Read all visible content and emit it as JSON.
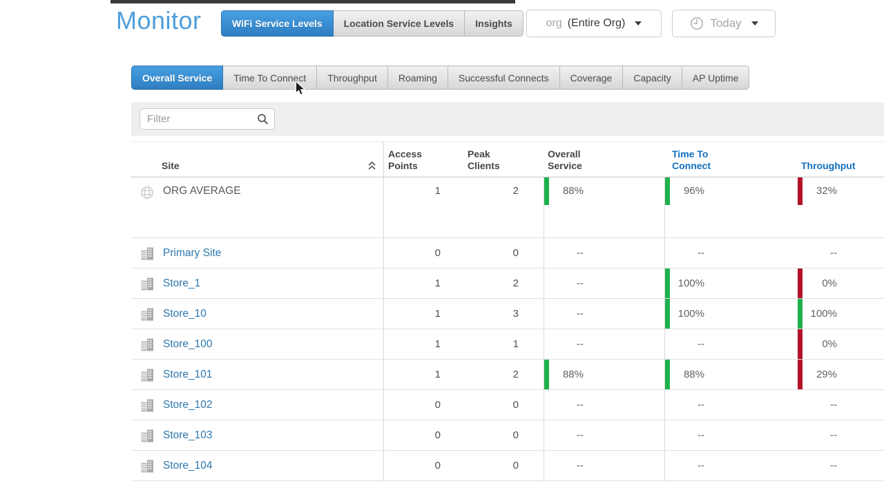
{
  "page": {
    "title": "Monitor"
  },
  "colors": {
    "accent": "#4e9edb",
    "good": "#1eb14b",
    "bad": "#b31228",
    "link": "#2d77ac",
    "link-strong": "#1470bd"
  },
  "view_tabs": [
    {
      "label": "WiFi Service Levels",
      "active": true
    },
    {
      "label": "Location Service Levels",
      "active": false
    },
    {
      "label": "Insights",
      "active": false
    }
  ],
  "org_selector": {
    "prefix": "org",
    "value": "(Entire Org)"
  },
  "time_selector": {
    "label": "Today"
  },
  "metric_tabs": [
    {
      "label": "Overall Service",
      "active": true
    },
    {
      "label": "Time To Connect",
      "active": false
    },
    {
      "label": "Throughput",
      "active": false
    },
    {
      "label": "Roaming",
      "active": false
    },
    {
      "label": "Successful Connects",
      "active": false
    },
    {
      "label": "Coverage",
      "active": false
    },
    {
      "label": "Capacity",
      "active": false
    },
    {
      "label": "AP Uptime",
      "active": false
    }
  ],
  "filter": {
    "placeholder": "Filter"
  },
  "table": {
    "columns": [
      {
        "lines": [
          "Site"
        ]
      },
      {
        "lines": [
          "Access",
          "Points"
        ]
      },
      {
        "lines": [
          "Peak",
          "Clients"
        ]
      },
      {
        "lines": [
          "Overall",
          "Service"
        ]
      },
      {
        "lines": [
          "Time To",
          "Connect"
        ]
      },
      {
        "lines": [
          "Throughput"
        ]
      }
    ],
    "rows": [
      {
        "icon": "globe",
        "name": "ORG AVERAGE",
        "link": false,
        "tall": true,
        "access_points": "1",
        "peak_clients": "2",
        "metrics": [
          {
            "value": "88%",
            "status": "good"
          },
          {
            "value": "96%",
            "status": "good"
          },
          {
            "value": "32%",
            "status": "bad"
          }
        ]
      },
      {
        "icon": "building",
        "name": "Primary Site",
        "link": true,
        "access_points": "0",
        "peak_clients": "0",
        "metrics": [
          {
            "value": "--",
            "status": "none"
          },
          {
            "value": "--",
            "status": "none"
          },
          {
            "value": "--",
            "status": "none"
          }
        ]
      },
      {
        "icon": "building",
        "name": "Store_1",
        "link": true,
        "access_points": "1",
        "peak_clients": "2",
        "metrics": [
          {
            "value": "--",
            "status": "none"
          },
          {
            "value": "100%",
            "status": "good"
          },
          {
            "value": "0%",
            "status": "bad"
          }
        ]
      },
      {
        "icon": "building",
        "name": "Store_10",
        "link": true,
        "access_points": "1",
        "peak_clients": "3",
        "metrics": [
          {
            "value": "--",
            "status": "none"
          },
          {
            "value": "100%",
            "status": "good"
          },
          {
            "value": "100%",
            "status": "good"
          }
        ]
      },
      {
        "icon": "building",
        "name": "Store_100",
        "link": true,
        "access_points": "1",
        "peak_clients": "1",
        "metrics": [
          {
            "value": "--",
            "status": "none"
          },
          {
            "value": "--",
            "status": "none"
          },
          {
            "value": "0%",
            "status": "bad"
          }
        ]
      },
      {
        "icon": "building",
        "name": "Store_101",
        "link": true,
        "access_points": "1",
        "peak_clients": "2",
        "metrics": [
          {
            "value": "88%",
            "status": "good"
          },
          {
            "value": "88%",
            "status": "good"
          },
          {
            "value": "29%",
            "status": "bad"
          }
        ]
      },
      {
        "icon": "building",
        "name": "Store_102",
        "link": true,
        "access_points": "0",
        "peak_clients": "0",
        "metrics": [
          {
            "value": "--",
            "status": "none"
          },
          {
            "value": "--",
            "status": "none"
          },
          {
            "value": "--",
            "status": "none"
          }
        ]
      },
      {
        "icon": "building",
        "name": "Store_103",
        "link": true,
        "access_points": "0",
        "peak_clients": "0",
        "metrics": [
          {
            "value": "--",
            "status": "none"
          },
          {
            "value": "--",
            "status": "none"
          },
          {
            "value": "--",
            "status": "none"
          }
        ]
      },
      {
        "icon": "building",
        "name": "Store_104",
        "link": true,
        "access_points": "0",
        "peak_clients": "0",
        "metrics": [
          {
            "value": "--",
            "status": "none"
          },
          {
            "value": "--",
            "status": "none"
          },
          {
            "value": "--",
            "status": "none"
          }
        ]
      }
    ]
  }
}
